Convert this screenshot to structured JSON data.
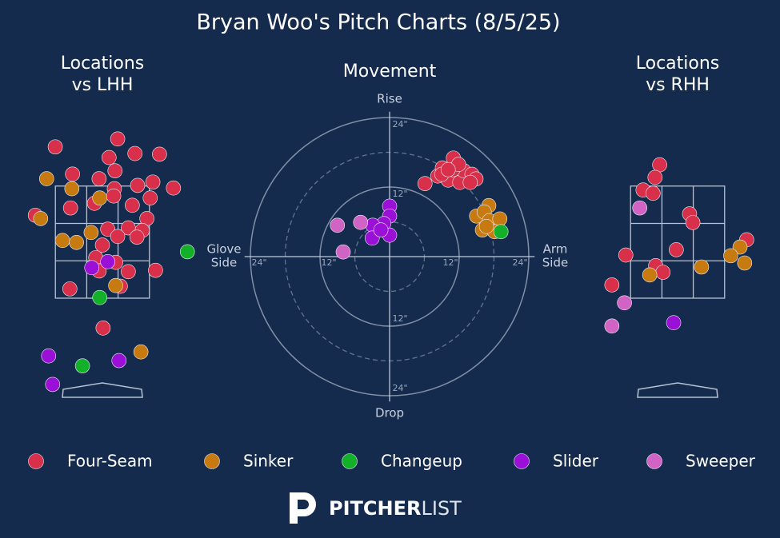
{
  "title": "Bryan Woo's Pitch Charts (8/5/25)",
  "brand": {
    "bold": "PITCHER",
    "light": "LIST"
  },
  "chart_data": [
    {
      "type": "scatter",
      "title": [
        "Locations",
        "vs LHH"
      ],
      "xlim": [
        -1.4,
        1.4
      ],
      "ylim": [
        0.2,
        4.5
      ],
      "zone": {
        "x": [
          -0.708,
          0.708
        ],
        "y": [
          1.8,
          3.49
        ]
      },
      "series": [
        {
          "color": "#d8304a",
          "x": [
            0.23,
            -0.71,
            0.49,
            0.86,
            0.1,
            0.19,
            -0.45,
            -0.05,
            0.76,
            0.53,
            1.07,
            0.18,
            0.72,
            -0.12,
            -0.48,
            0.45,
            -1.01,
            0.67,
            0.39,
            0.6,
            0.08,
            0.23,
            0.52,
            0.0,
            -0.1,
            0.2,
            -0.05,
            0.39,
            0.8,
            -0.49,
            0.27,
            0.01,
            0.17
          ],
          "y": [
            4.2,
            4.08,
            3.98,
            3.97,
            3.92,
            3.72,
            3.67,
            3.6,
            3.55,
            3.5,
            3.46,
            3.45,
            3.31,
            3.23,
            3.16,
            3.2,
            3.05,
            3.0,
            2.86,
            2.82,
            2.84,
            2.73,
            2.72,
            2.6,
            2.41,
            2.34,
            2.21,
            2.2,
            2.22,
            1.94,
            1.98,
            1.35,
            3.34
          ]
        },
        {
          "color": "#c77a0f",
          "x": [
            -0.84,
            -0.46,
            -0.04,
            -0.93,
            -0.6,
            -0.39,
            -0.17,
            0.2,
            0.58
          ],
          "y": [
            3.6,
            3.45,
            3.31,
            3.0,
            2.67,
            2.64,
            2.79,
            1.99,
            0.99
          ]
        },
        {
          "color": "#13b02a",
          "x": [
            1.28,
            -0.04,
            -0.3
          ],
          "y": [
            2.5,
            1.81,
            0.78
          ]
        },
        {
          "color": "#9a10d6",
          "x": [
            -0.16,
            0.08,
            -0.81,
            0.25,
            -0.75
          ],
          "y": [
            2.26,
            2.35,
            0.93,
            0.86,
            0.5
          ]
        },
        {
          "color": "#d063c3",
          "x": [],
          "y": []
        }
      ]
    },
    {
      "type": "polar-scatter",
      "title": "Movement",
      "labels": {
        "top": "Rise",
        "bottom": "Drop",
        "left": [
          "Glove",
          "Side"
        ],
        "right": [
          "Arm",
          "Side"
        ]
      },
      "xlim": [
        -25,
        25
      ],
      "ylim": [
        -25,
        25
      ],
      "xticks": [
        {
          "value": -24,
          "label": "24\""
        },
        {
          "value": -12,
          "label": "12\""
        },
        {
          "value": 12,
          "label": "12\""
        },
        {
          "value": 24,
          "label": "24\""
        }
      ],
      "yticks": [
        {
          "value": 24,
          "label": "24\""
        },
        {
          "value": 12,
          "label": "12\""
        },
        {
          "value": -12,
          "label": "12\""
        },
        {
          "value": -24,
          "label": "24\""
        }
      ],
      "minor_rings": [
        6,
        18
      ],
      "series": [
        {
          "name": "Four-Seam",
          "color": "#d8304a",
          "x": [
            6.1,
            8.3,
            9.1,
            11.0,
            10.1,
            12.1,
            12.8,
            14.2,
            14.9,
            10.9,
            13.9,
            9.0,
            11.9,
            10.1
          ],
          "y": [
            12.6,
            13.9,
            15.3,
            17.0,
            13.2,
            12.8,
            14.8,
            14.2,
            13.4,
            15.0,
            12.8,
            14.2,
            15.9,
            15.0
          ]
        },
        {
          "name": "Sinker",
          "color": "#c77a0f",
          "x": [
            17.1,
            15.0,
            16.3,
            17.2,
            19.0,
            16.0,
            18.1,
            16.7
          ],
          "y": [
            8.8,
            7.0,
            7.7,
            6.2,
            6.5,
            4.6,
            4.3,
            5.2
          ]
        },
        {
          "name": "Changeup",
          "color": "#13b02a",
          "x": [
            19.2
          ],
          "y": [
            4.3
          ]
        },
        {
          "name": "Slider",
          "color": "#9a10d6",
          "x": [
            0.0,
            0.0,
            -1.0,
            -2.9,
            -3.0,
            0.0,
            -1.5
          ],
          "y": [
            8.7,
            7.0,
            5.7,
            5.4,
            3.2,
            3.7,
            4.6
          ]
        },
        {
          "name": "Sweeper",
          "color": "#d063c3",
          "x": [
            -9.0,
            -5.0,
            -8.0
          ],
          "y": [
            5.4,
            5.9,
            0.8
          ]
        }
      ]
    },
    {
      "type": "scatter",
      "title": [
        "Locations",
        "vs RHH"
      ],
      "xlim": [
        -1.4,
        1.4
      ],
      "ylim": [
        0.2,
        4.5
      ],
      "zone": {
        "x": [
          -0.708,
          0.708
        ],
        "y": [
          1.8,
          3.49
        ]
      },
      "series": [
        {
          "color": "#d8304a",
          "x": [
            -0.27,
            -0.34,
            -0.52,
            -0.37,
            0.18,
            0.23,
            -0.02,
            -0.78,
            1.04,
            -0.33,
            -0.22,
            -0.99
          ],
          "y": [
            3.81,
            3.62,
            3.43,
            3.38,
            3.07,
            2.94,
            2.53,
            2.45,
            2.68,
            2.29,
            2.19,
            2.0
          ]
        },
        {
          "color": "#c77a0f",
          "x": [
            0.94,
            0.8,
            1.01,
            0.36,
            -0.42
          ],
          "y": [
            2.57,
            2.44,
            2.33,
            2.27,
            2.15
          ]
        },
        {
          "color": "#13b02a",
          "x": [],
          "y": []
        },
        {
          "color": "#9a10d6",
          "x": [
            -0.06
          ],
          "y": [
            1.43
          ]
        },
        {
          "color": "#d063c3",
          "x": [
            -0.57,
            -0.8,
            -0.99
          ],
          "y": [
            3.16,
            1.73,
            1.38
          ]
        }
      ]
    }
  ]
}
